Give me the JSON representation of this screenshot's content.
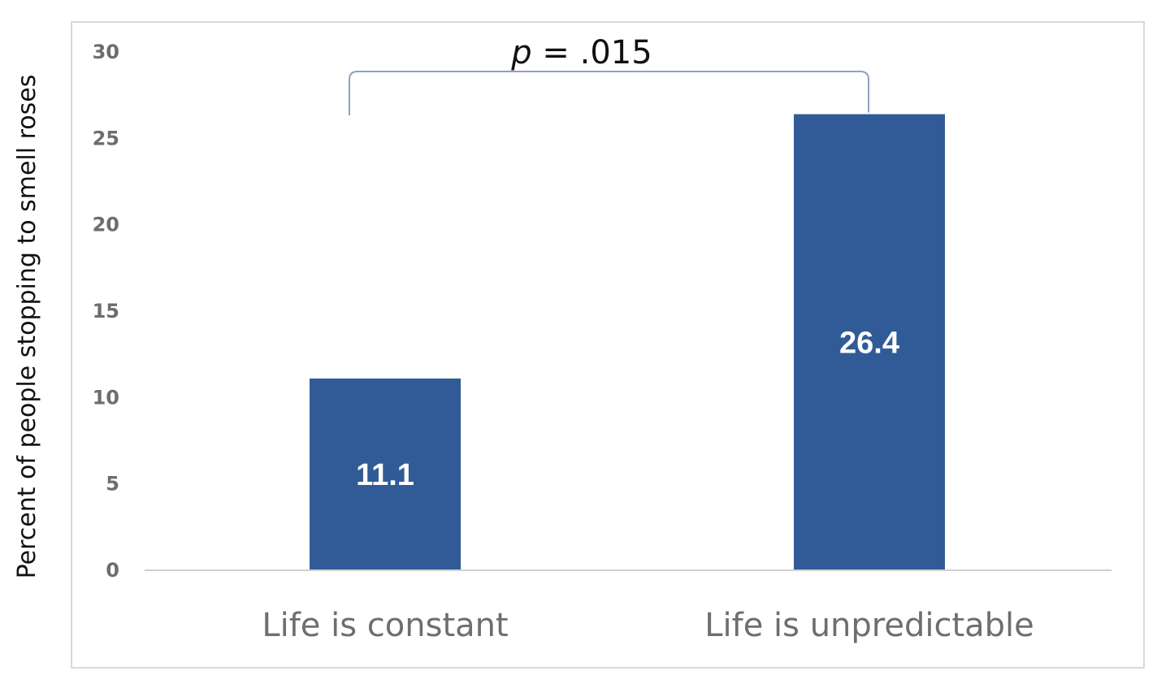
{
  "chart_data": {
    "type": "bar",
    "categories": [
      "Life is constant",
      "Life is unpredictable"
    ],
    "values": [
      11.1,
      26.4
    ],
    "data_labels": [
      "11.1",
      "26.4"
    ],
    "title": "",
    "xlabel": "",
    "ylabel": "Percent of people stopping to smell roses",
    "ylim": [
      0,
      30
    ],
    "yticks": [
      0,
      5,
      10,
      15,
      20,
      25,
      30
    ],
    "grid": false,
    "legend": "none",
    "bar_color": "#315b96",
    "annotation": {
      "p_symbol": "p",
      "p_rest": " = .015"
    }
  }
}
